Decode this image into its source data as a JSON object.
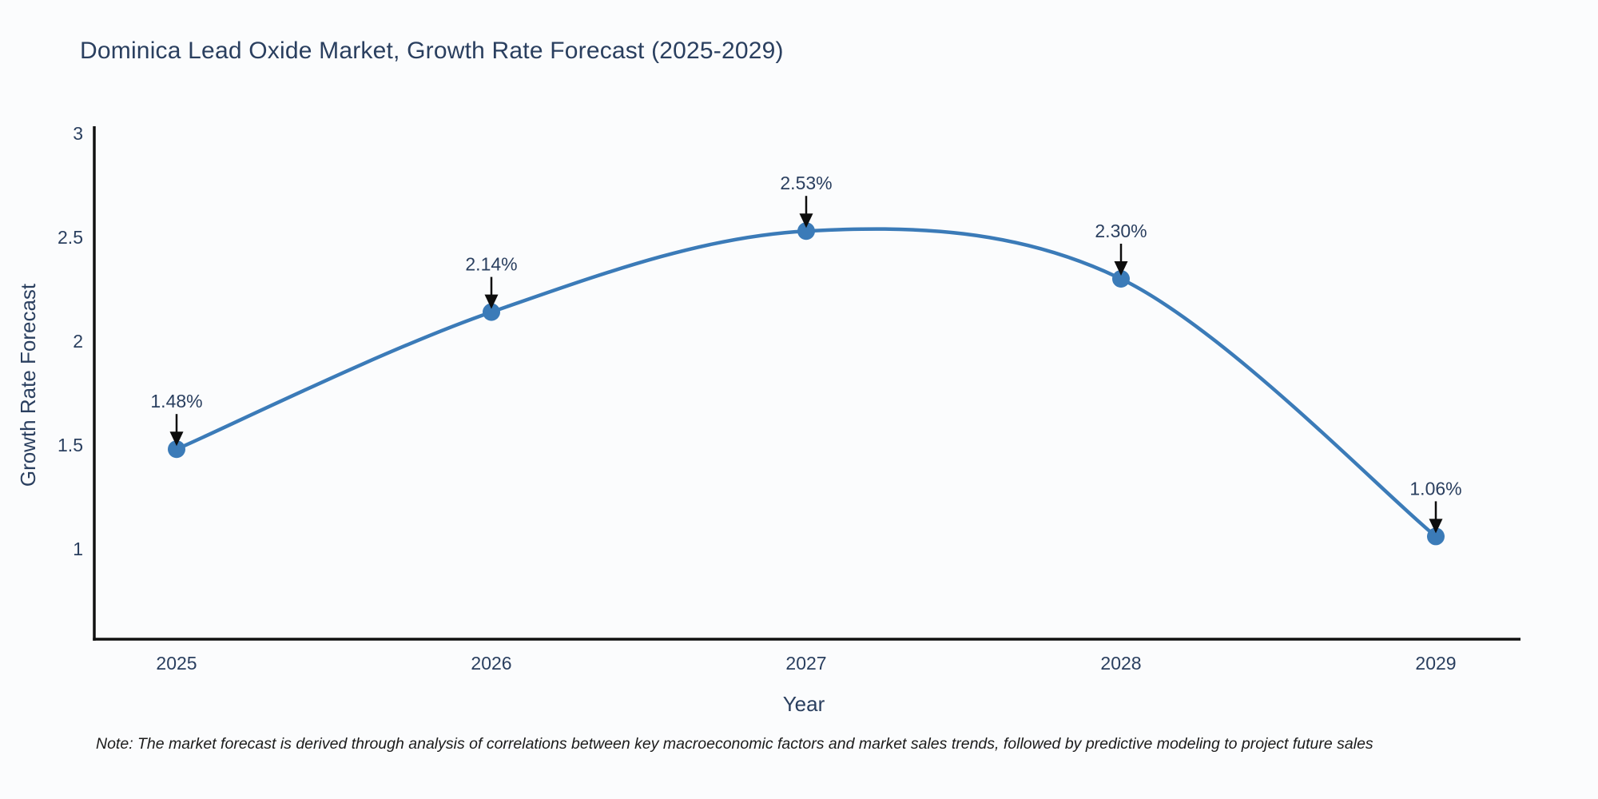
{
  "chart": {
    "title": "Dominica Lead Oxide Market, Growth Rate Forecast (2025-2029)",
    "note": "Note: The market forecast is derived through analysis of correlations between key macroeconomic factors and market sales trends, followed by predictive modeling to project future sales"
  },
  "chart_data": {
    "type": "line",
    "title": "Dominica Lead Oxide Market, Growth Rate Forecast (2025-2029)",
    "xlabel": "Year",
    "ylabel": "Growth Rate Forecast",
    "categories": [
      "2025",
      "2026",
      "2027",
      "2028",
      "2029"
    ],
    "values": [
      1.48,
      2.14,
      2.53,
      2.3,
      1.06
    ],
    "point_labels": [
      "1.48%",
      "2.14%",
      "2.53%",
      "2.30%",
      "1.06%"
    ],
    "ytick_labels": [
      "1",
      "1.5",
      "2",
      "2.5",
      "3"
    ],
    "yticks": [
      1,
      1.5,
      2,
      2.5,
      3
    ],
    "ylim": [
      0.565,
      3.0
    ],
    "line_shape": "spline",
    "grid": false,
    "legend": "none",
    "annotation_style": "down-arrow-to-point",
    "colors": {
      "line": "#3b7bb8",
      "marker": "#3b7bb8",
      "axis": "#111111",
      "tick_text": "#2a3f5f",
      "title_text": "#2a3f5f",
      "annotation_text": "#2a3f5f",
      "arrow": "#0d0d0d",
      "background": "#fbfcfd"
    }
  }
}
